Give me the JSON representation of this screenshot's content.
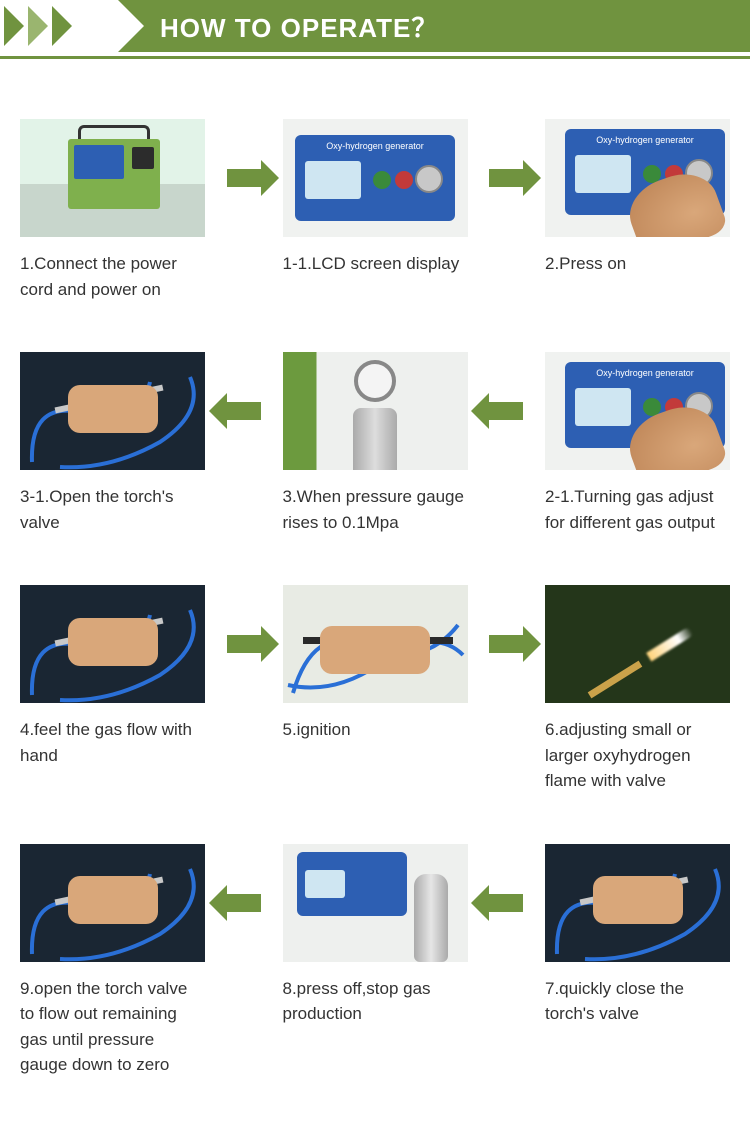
{
  "banner": {
    "title": "HOW TO OPERATE？",
    "bg_color": "#70933f",
    "text_color": "#ffffff",
    "chevron_dark": "#70933f",
    "chevron_light": "#9ab56f"
  },
  "arrow_color": "#70933f",
  "hose_color": "#2a6fd6",
  "caption_color": "#333333",
  "caption_fontsize": 17,
  "panel_text": "Oxy-hydrogen generator",
  "rows": [
    {
      "direction": "right",
      "steps": [
        {
          "id": "s1",
          "scene": "machine",
          "caption": "1.Connect the power cord and power on"
        },
        {
          "id": "s1_1",
          "scene": "panel",
          "caption": "1-1.LCD screen display"
        },
        {
          "id": "s2",
          "scene": "panel_hand",
          "caption": "2.Press on"
        }
      ]
    },
    {
      "direction": "left",
      "steps": [
        {
          "id": "s3_1",
          "scene": "torch",
          "caption": "3-1.Open the torch's valve"
        },
        {
          "id": "s3",
          "scene": "gauge",
          "caption": "3.When pressure gauge rises to 0.1Mpa"
        },
        {
          "id": "s2_1",
          "scene": "panel_hand",
          "caption": "2-1.Turning gas adjust for different gas output"
        }
      ]
    },
    {
      "direction": "right",
      "steps": [
        {
          "id": "s4",
          "scene": "torch",
          "caption": "4.feel the gas flow with hand"
        },
        {
          "id": "s5",
          "scene": "ignite",
          "caption": "5.ignition"
        },
        {
          "id": "s6",
          "scene": "flame",
          "caption": "6.adjusting small or larger oxyhydrogen flame with valve"
        }
      ]
    },
    {
      "direction": "left",
      "steps": [
        {
          "id": "s9",
          "scene": "torch",
          "caption": "9.open the torch valve to flow out remaining gas until pressure gauge down to zero"
        },
        {
          "id": "s8",
          "scene": "off",
          "caption": "8.press off,stop gas production"
        },
        {
          "id": "s7",
          "scene": "torch",
          "caption": "7.quickly close the torch's valve"
        }
      ]
    }
  ]
}
